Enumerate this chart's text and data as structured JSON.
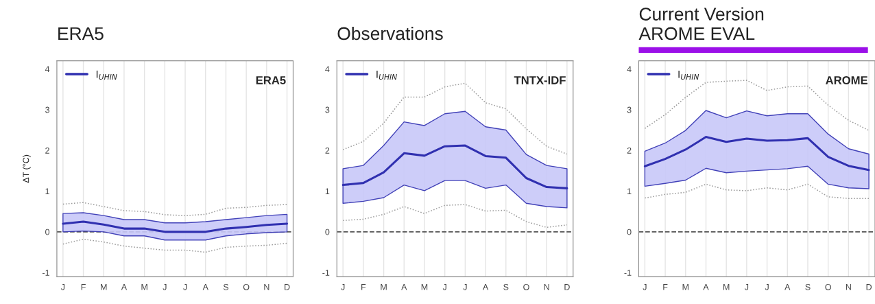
{
  "chart_data": [
    {
      "type": "line",
      "title": "ERA5",
      "ylabel": "ΔT (°C)",
      "categories": [
        "J",
        "F",
        "M",
        "A",
        "M",
        "J",
        "J",
        "A",
        "S",
        "O",
        "N",
        "D"
      ],
      "ylim": [
        -1.1,
        4.2
      ],
      "yticks": [
        -1,
        0,
        1,
        2,
        3,
        4
      ],
      "grid": "x",
      "legend": "top left",
      "annotations": [
        "ERA5"
      ],
      "ref_lines": [
        {
          "axis": "y",
          "value": 0,
          "color": "#555555",
          "line_style": "dashed"
        }
      ],
      "series": [
        {
          "name": "I$_{UHIN}$",
          "color": "#3030b0",
          "values": [
            0.2,
            0.25,
            0.18,
            0.08,
            0.08,
            0.0,
            0.0,
            0.0,
            0.08,
            0.12,
            0.17,
            0.2
          ],
          "lower": [
            0.0,
            0.02,
            0.0,
            -0.1,
            -0.1,
            -0.2,
            -0.2,
            -0.2,
            -0.1,
            -0.05,
            -0.02,
            0.0
          ],
          "upper": [
            0.45,
            0.47,
            0.4,
            0.3,
            0.3,
            0.22,
            0.22,
            0.25,
            0.3,
            0.35,
            0.4,
            0.43
          ]
        },
        {
          "color": "#999999",
          "line_style": "dotted",
          "values": [
            0.68,
            0.72,
            0.62,
            0.52,
            0.5,
            0.42,
            0.4,
            0.43,
            0.58,
            0.6,
            0.65,
            0.67
          ]
        },
        {
          "color": "#999999",
          "line_style": "dotted",
          "values": [
            -0.3,
            -0.18,
            -0.25,
            -0.35,
            -0.4,
            -0.45,
            -0.45,
            -0.5,
            -0.38,
            -0.35,
            -0.33,
            -0.28
          ]
        }
      ]
    },
    {
      "type": "line",
      "title": "Observations",
      "categories": [
        "J",
        "F",
        "M",
        "A",
        "M",
        "J",
        "J",
        "A",
        "S",
        "O",
        "N",
        "D"
      ],
      "ylim": [
        -1.1,
        4.2
      ],
      "yticks": [
        -1,
        0,
        1,
        2,
        3,
        4
      ],
      "grid": "x",
      "legend": "top left",
      "annotations": [
        "TNTX-IDF"
      ],
      "ref_lines": [
        {
          "axis": "y",
          "value": 0,
          "color": "#555555",
          "line_style": "dashed"
        }
      ],
      "series": [
        {
          "name": "I$_{UHIN}$",
          "color": "#3030b0",
          "values": [
            1.15,
            1.2,
            1.46,
            1.93,
            1.87,
            2.1,
            2.12,
            1.86,
            1.82,
            1.32,
            1.1,
            1.07
          ],
          "lower": [
            0.7,
            0.75,
            0.84,
            1.15,
            1.01,
            1.26,
            1.26,
            1.07,
            1.15,
            0.7,
            0.62,
            0.59
          ],
          "upper": [
            1.55,
            1.63,
            2.12,
            2.7,
            2.61,
            2.9,
            2.96,
            2.58,
            2.5,
            1.9,
            1.63,
            1.55
          ]
        },
        {
          "color": "#999999",
          "line_style": "dotted",
          "values": [
            2.02,
            2.22,
            2.67,
            3.31,
            3.31,
            3.56,
            3.65,
            3.17,
            3.02,
            2.53,
            2.1,
            1.91
          ]
        },
        {
          "color": "#999999",
          "line_style": "dotted",
          "values": [
            0.28,
            0.31,
            0.43,
            0.62,
            0.45,
            0.65,
            0.67,
            0.51,
            0.53,
            0.25,
            0.11,
            0.17
          ]
        }
      ]
    },
    {
      "type": "line",
      "title": "Current Version\nAROME EVAL",
      "categories": [
        "J",
        "F",
        "M",
        "A",
        "M",
        "J",
        "J",
        "A",
        "S",
        "O",
        "N",
        "D"
      ],
      "ylim": [
        -1.1,
        4.2
      ],
      "yticks": [
        -1,
        0,
        1,
        2,
        3,
        4
      ],
      "grid": "x",
      "legend": "top left",
      "annotations": [
        "AROME"
      ],
      "ref_lines": [
        {
          "axis": "y",
          "value": 0,
          "color": "#555555",
          "line_style": "dashed"
        }
      ],
      "series": [
        {
          "name": "I$_{UHIN}$",
          "color": "#3030b0",
          "values": [
            1.61,
            1.79,
            2.02,
            2.33,
            2.21,
            2.29,
            2.24,
            2.25,
            2.3,
            1.84,
            1.62,
            1.52
          ],
          "lower": [
            1.12,
            1.19,
            1.27,
            1.56,
            1.45,
            1.49,
            1.52,
            1.55,
            1.61,
            1.17,
            1.08,
            1.06
          ],
          "upper": [
            1.98,
            2.18,
            2.49,
            2.98,
            2.8,
            2.97,
            2.85,
            2.9,
            2.9,
            2.4,
            2.04,
            1.91
          ]
        },
        {
          "color": "#999999",
          "line_style": "dotted",
          "values": [
            2.54,
            2.88,
            3.3,
            3.67,
            3.7,
            3.72,
            3.47,
            3.56,
            3.58,
            3.11,
            2.74,
            2.49
          ]
        },
        {
          "color": "#999999",
          "line_style": "dotted",
          "values": [
            0.83,
            0.92,
            0.97,
            1.17,
            1.03,
            1.01,
            1.08,
            1.03,
            1.17,
            0.86,
            0.82,
            0.82
          ]
        }
      ]
    }
  ]
}
